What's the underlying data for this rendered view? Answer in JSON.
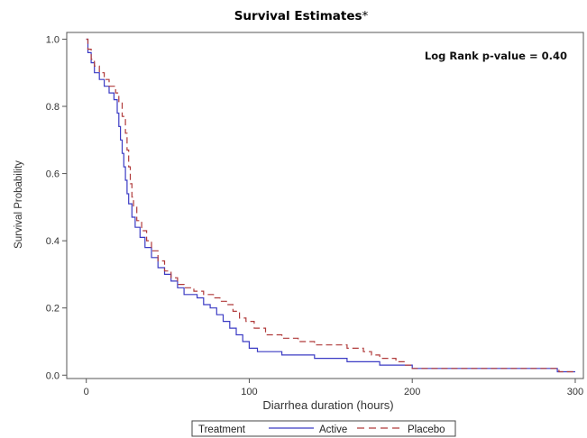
{
  "chart_data": {
    "type": "line",
    "step": true,
    "title": "Survival Estimates",
    "title_suffix": "*",
    "xlabel": "Diarrhea duration (hours)",
    "ylabel": "Survival Probability",
    "xlim": [
      -12,
      305
    ],
    "ylim": [
      -0.01,
      1.02
    ],
    "xticks": [
      0,
      100,
      200,
      300
    ],
    "yticks": [
      "0.0",
      "0.2",
      "0.4",
      "0.6",
      "0.8",
      "1.0"
    ],
    "grid": false,
    "annotation": "Log Rank p-value = 0.40",
    "legend": {
      "title": "Treatment",
      "position": "bottom",
      "entries": [
        "Active",
        "Placebo"
      ]
    },
    "series": [
      {
        "name": "Active",
        "color": "#3b3bc4",
        "dash": "solid",
        "points": [
          [
            0,
            1.0
          ],
          [
            1,
            0.96
          ],
          [
            3,
            0.93
          ],
          [
            5,
            0.9
          ],
          [
            8,
            0.88
          ],
          [
            11,
            0.86
          ],
          [
            14,
            0.84
          ],
          [
            17,
            0.82
          ],
          [
            19,
            0.78
          ],
          [
            20,
            0.74
          ],
          [
            21,
            0.7
          ],
          [
            22,
            0.66
          ],
          [
            23,
            0.62
          ],
          [
            24,
            0.58
          ],
          [
            25,
            0.54
          ],
          [
            26,
            0.51
          ],
          [
            28,
            0.47
          ],
          [
            30,
            0.44
          ],
          [
            33,
            0.41
          ],
          [
            36,
            0.38
          ],
          [
            40,
            0.35
          ],
          [
            44,
            0.32
          ],
          [
            48,
            0.3
          ],
          [
            52,
            0.28
          ],
          [
            56,
            0.26
          ],
          [
            60,
            0.24
          ],
          [
            68,
            0.23
          ],
          [
            72,
            0.21
          ],
          [
            76,
            0.2
          ],
          [
            80,
            0.18
          ],
          [
            84,
            0.16
          ],
          [
            88,
            0.14
          ],
          [
            92,
            0.12
          ],
          [
            96,
            0.1
          ],
          [
            100,
            0.08
          ],
          [
            105,
            0.07
          ],
          [
            110,
            0.07
          ],
          [
            120,
            0.06
          ],
          [
            140,
            0.05
          ],
          [
            160,
            0.04
          ],
          [
            180,
            0.03
          ],
          [
            200,
            0.02
          ],
          [
            220,
            0.02
          ],
          [
            284,
            0.02
          ],
          [
            289,
            0.01
          ],
          [
            300,
            0.01
          ]
        ]
      },
      {
        "name": "Placebo",
        "color": "#b03a3a",
        "dash": "dashed",
        "points": [
          [
            0,
            1.0
          ],
          [
            1,
            0.97
          ],
          [
            3,
            0.94
          ],
          [
            5,
            0.92
          ],
          [
            8,
            0.9
          ],
          [
            11,
            0.88
          ],
          [
            14,
            0.86
          ],
          [
            18,
            0.84
          ],
          [
            20,
            0.81
          ],
          [
            22,
            0.77
          ],
          [
            24,
            0.72
          ],
          [
            25,
            0.67
          ],
          [
            26,
            0.62
          ],
          [
            27,
            0.57
          ],
          [
            28,
            0.53
          ],
          [
            29,
            0.5
          ],
          [
            31,
            0.46
          ],
          [
            34,
            0.43
          ],
          [
            37,
            0.4
          ],
          [
            40,
            0.37
          ],
          [
            44,
            0.34
          ],
          [
            48,
            0.31
          ],
          [
            52,
            0.29
          ],
          [
            56,
            0.27
          ],
          [
            60,
            0.26
          ],
          [
            66,
            0.25
          ],
          [
            72,
            0.24
          ],
          [
            78,
            0.23
          ],
          [
            82,
            0.22
          ],
          [
            86,
            0.21
          ],
          [
            90,
            0.19
          ],
          [
            94,
            0.17
          ],
          [
            98,
            0.16
          ],
          [
            103,
            0.14
          ],
          [
            110,
            0.12
          ],
          [
            120,
            0.11
          ],
          [
            130,
            0.1
          ],
          [
            140,
            0.09
          ],
          [
            150,
            0.09
          ],
          [
            160,
            0.08
          ],
          [
            170,
            0.07
          ],
          [
            175,
            0.06
          ],
          [
            180,
            0.05
          ],
          [
            190,
            0.04
          ],
          [
            195,
            0.03
          ],
          [
            200,
            0.02
          ],
          [
            240,
            0.02
          ],
          [
            280,
            0.02
          ],
          [
            290,
            0.01
          ],
          [
            300,
            0.01
          ]
        ]
      }
    ]
  }
}
